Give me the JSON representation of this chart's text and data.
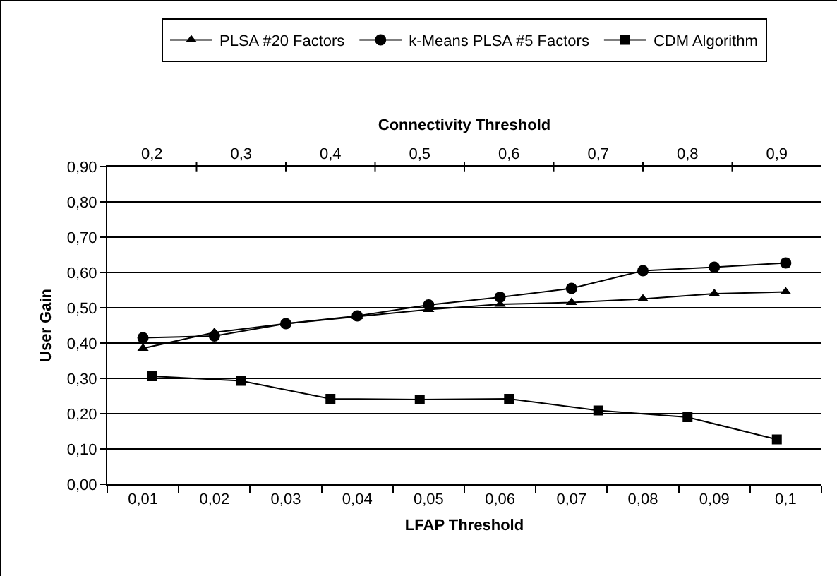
{
  "chart_data": {
    "type": "line",
    "xlabel": "LFAP Threshold",
    "x2label": "Connectivity Threshold",
    "ylabel": "User Gain",
    "categories": [
      "0,01",
      "0,02",
      "0,03",
      "0,04",
      "0,05",
      "0,06",
      "0,07",
      "0,08",
      "0,09",
      "0,1"
    ],
    "x2lim": [
      0.15,
      0.95
    ],
    "x2ticks": [
      {
        "value": 0.2,
        "label": "0,2"
      },
      {
        "value": 0.25,
        "label": null
      },
      {
        "value": 0.3,
        "label": "0,3"
      },
      {
        "value": 0.35,
        "label": null
      },
      {
        "value": 0.4,
        "label": "0,4"
      },
      {
        "value": 0.45,
        "label": null
      },
      {
        "value": 0.5,
        "label": "0,5"
      },
      {
        "value": 0.55,
        "label": null
      },
      {
        "value": 0.6,
        "label": "0,6"
      },
      {
        "value": 0.65,
        "label": null
      },
      {
        "value": 0.7,
        "label": "0,7"
      },
      {
        "value": 0.75,
        "label": null
      },
      {
        "value": 0.8,
        "label": "0,8"
      },
      {
        "value": 0.85,
        "label": null
      },
      {
        "value": 0.9,
        "label": "0,9"
      }
    ],
    "ylim": [
      0,
      0.9
    ],
    "yticks": [
      {
        "value": 0,
        "label": "0,00"
      },
      {
        "value": 0.1,
        "label": "0,10"
      },
      {
        "value": 0.2,
        "label": "0,20"
      },
      {
        "value": 0.3,
        "label": "0,30"
      },
      {
        "value": 0.4,
        "label": "0,40"
      },
      {
        "value": 0.5,
        "label": "0,50"
      },
      {
        "value": 0.6,
        "label": "0,60"
      },
      {
        "value": 0.7,
        "label": "0,70"
      },
      {
        "value": 0.8,
        "label": "0,80"
      },
      {
        "value": 0.9,
        "label": "0,90"
      }
    ],
    "grid": "y",
    "legend": "top",
    "line_style": "solid",
    "series": [
      {
        "name": "PLSA #20 Factors",
        "color": "#000000",
        "marker": "triangle",
        "values": [
          0.385,
          0.43,
          0.455,
          0.475,
          0.495,
          0.51,
          0.515,
          0.525,
          0.54,
          0.545
        ]
      },
      {
        "name": "k-Means PLSA #5 Factors",
        "color": "#000000",
        "marker": "circle",
        "values": [
          0.415,
          0.42,
          0.455,
          0.477,
          0.508,
          0.53,
          0.555,
          0.605,
          0.615,
          0.627
        ]
      },
      {
        "name": "CDM Algorithm",
        "color": "#000000",
        "marker": "square",
        "axis": "x2",
        "x": [
          0.2,
          0.3,
          0.4,
          0.5,
          0.6,
          0.7,
          0.8,
          0.9
        ],
        "values": [
          0.306,
          0.293,
          0.242,
          0.24,
          0.242,
          0.209,
          0.19,
          0.127
        ]
      }
    ]
  }
}
